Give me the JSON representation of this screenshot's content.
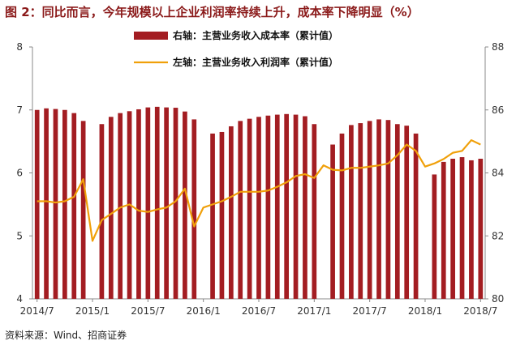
{
  "title": "图 2：同比而言，今年规模以上企业利润率持续上升，成本率下降明显（%）",
  "source": "资料来源：Wind、招商证券",
  "chart_data": {
    "type": "bar+line",
    "x": [
      "2014/7",
      "2014/8",
      "2014/9",
      "2014/10",
      "2014/11",
      "2014/12",
      "2015/1",
      "2015/2",
      "2015/3",
      "2015/4",
      "2015/5",
      "2015/6",
      "2015/7",
      "2015/8",
      "2015/9",
      "2015/10",
      "2015/11",
      "2015/12",
      "2016/1",
      "2016/2",
      "2016/3",
      "2016/4",
      "2016/5",
      "2016/6",
      "2016/7",
      "2016/8",
      "2016/9",
      "2016/10",
      "2016/11",
      "2016/12",
      "2017/1",
      "2017/2",
      "2017/3",
      "2017/4",
      "2017/5",
      "2017/6",
      "2017/7",
      "2017/8",
      "2017/9",
      "2017/10",
      "2017/11",
      "2017/12",
      "2018/1",
      "2018/2",
      "2018/3",
      "2018/4",
      "2018/5",
      "2018/6",
      "2018/7"
    ],
    "x_tick_labels": [
      "2014/7",
      "2015/1",
      "2015/7",
      "2016/1",
      "2016/7",
      "2017/1",
      "2017/7",
      "2018/1",
      "2018/7"
    ],
    "left_axis": {
      "ylim": [
        4,
        8
      ],
      "ticks": [
        "4",
        "5",
        "6",
        "7",
        "8"
      ]
    },
    "right_axis": {
      "ylim": [
        80,
        88
      ],
      "ticks": [
        "80",
        "82",
        "84",
        "86",
        "88"
      ]
    },
    "series": [
      {
        "name": "右轴：主营业务收入成本率（累计值）",
        "axis": "right",
        "kind": "bar",
        "color": "#a31d22",
        "values": [
          86.0,
          86.05,
          86.03,
          86.0,
          85.9,
          85.65,
          null,
          85.55,
          85.78,
          85.9,
          85.96,
          86.02,
          86.08,
          86.1,
          86.08,
          86.07,
          85.95,
          85.7,
          null,
          85.25,
          85.3,
          85.48,
          85.65,
          85.72,
          85.78,
          85.82,
          85.85,
          85.87,
          85.85,
          85.8,
          85.55,
          null,
          84.9,
          85.25,
          85.52,
          85.58,
          85.65,
          85.7,
          85.68,
          85.55,
          85.5,
          85.25,
          null,
          83.95,
          84.35,
          84.45,
          84.5,
          84.4,
          84.45
        ]
      },
      {
        "name": "左轴：主营业务收入利润率（累计值）",
        "axis": "left",
        "kind": "line",
        "color": "#f0a00a",
        "values": [
          5.55,
          5.55,
          5.53,
          5.55,
          5.62,
          5.9,
          4.92,
          5.25,
          5.35,
          5.45,
          5.5,
          5.4,
          5.38,
          5.42,
          5.45,
          5.55,
          5.75,
          5.15,
          5.45,
          5.5,
          5.55,
          5.62,
          5.7,
          5.7,
          5.7,
          5.72,
          5.78,
          5.85,
          5.95,
          5.98,
          5.92,
          6.12,
          6.05,
          6.04,
          6.08,
          6.08,
          6.1,
          6.12,
          6.15,
          6.28,
          6.45,
          6.35,
          6.1,
          6.15,
          6.22,
          6.32,
          6.35,
          6.52,
          6.45
        ]
      }
    ],
    "legend_position": "top-center"
  }
}
